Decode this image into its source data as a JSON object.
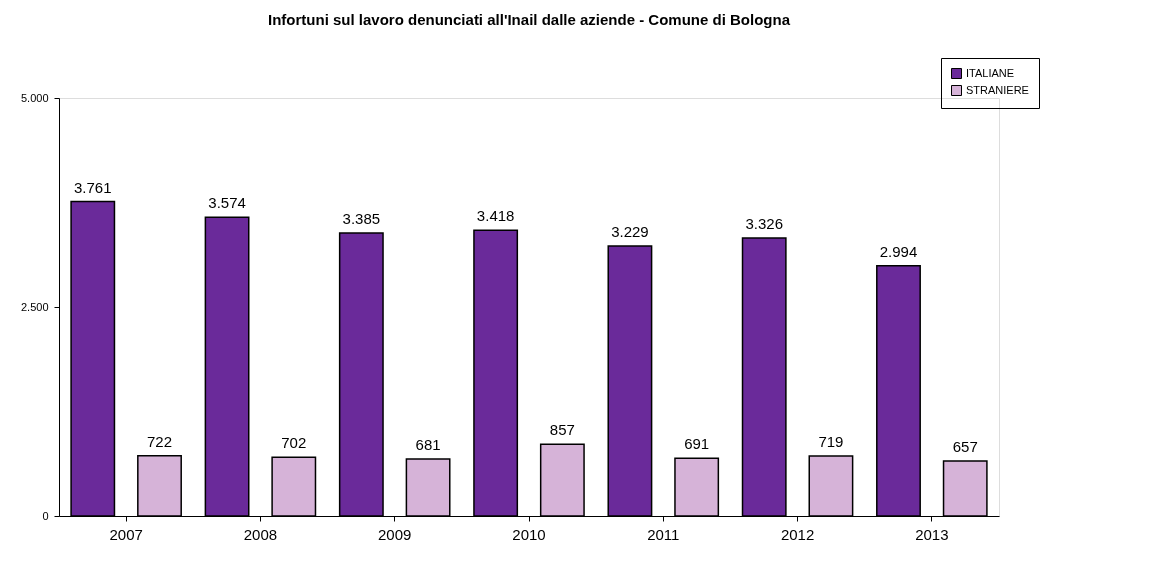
{
  "chart_data": {
    "type": "bar",
    "title": "Infortuni sul lavoro denunciati all'Inail dalle aziende - Comune di Bologna",
    "categories": [
      "2007",
      "2008",
      "2009",
      "2010",
      "2011",
      "2012",
      "2013"
    ],
    "series": [
      {
        "name": "ITALIANE",
        "color": "#6a2a9a",
        "values": [
          3761,
          3574,
          3385,
          3418,
          3229,
          3326,
          2994
        ],
        "value_labels": [
          "3.761",
          "3.574",
          "3.385",
          "3.418",
          "3.229",
          "3.326",
          "2.994"
        ]
      },
      {
        "name": "STRANIERE",
        "color": "#d6b3d8",
        "values": [
          722,
          702,
          681,
          857,
          691,
          719,
          657
        ],
        "value_labels": [
          "722",
          "702",
          "681",
          "857",
          "691",
          "719",
          "657"
        ]
      }
    ],
    "ylim": [
      0,
      5000
    ],
    "yticks": [
      0,
      {
        "value": 2500,
        "label": "2.500"
      },
      {
        "value": 5000,
        "label": "5.000"
      }
    ],
    "grid": false,
    "legend": "top right"
  }
}
